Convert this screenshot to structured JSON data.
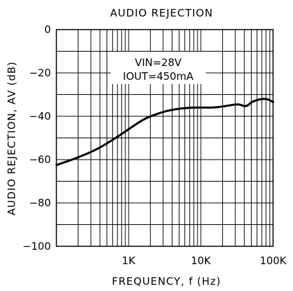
{
  "chart_data": {
    "type": "line",
    "title": "AUDIO REJECTION",
    "xlabel": "FREQUENCY, f (Hz)",
    "ylabel": "AUDIO REJECTION, AV (dB)",
    "xscale": "log",
    "xlim": [
      100,
      100000
    ],
    "ylim": [
      -100,
      0
    ],
    "grid": true,
    "x_tick_labels": [
      {
        "value": 1000,
        "label": "1K"
      },
      {
        "value": 10000,
        "label": "10K"
      },
      {
        "value": 100000,
        "label": "100K"
      }
    ],
    "y_tick_labels": [
      {
        "value": 0,
        "label": "0"
      },
      {
        "value": -20,
        "label": "−20"
      },
      {
        "value": -40,
        "label": "−40"
      },
      {
        "value": -60,
        "label": "−60"
      },
      {
        "value": -80,
        "label": "−80"
      },
      {
        "value": -100,
        "label": "−100"
      }
    ],
    "annotations": [
      "VIN=28V",
      "IOUT=450mA"
    ],
    "series": [
      {
        "x": [
          100,
          150,
          200,
          300,
          400,
          500,
          700,
          1000,
          1500,
          2000,
          3000,
          4000,
          5000,
          7000,
          10000,
          15000,
          20000,
          30000,
          35000,
          40000,
          45000,
          50000,
          60000,
          70000,
          80000,
          90000,
          100000
        ],
        "values": [
          -62.5,
          -60.5,
          -59,
          -56.5,
          -54.5,
          -52.5,
          -49.5,
          -46,
          -42,
          -40,
          -38,
          -37,
          -36.5,
          -36,
          -36,
          -36,
          -35.5,
          -34.5,
          -34.5,
          -35.5,
          -35,
          -33.5,
          -32.5,
          -32,
          -32,
          -32.5,
          -33.5
        ]
      }
    ]
  }
}
